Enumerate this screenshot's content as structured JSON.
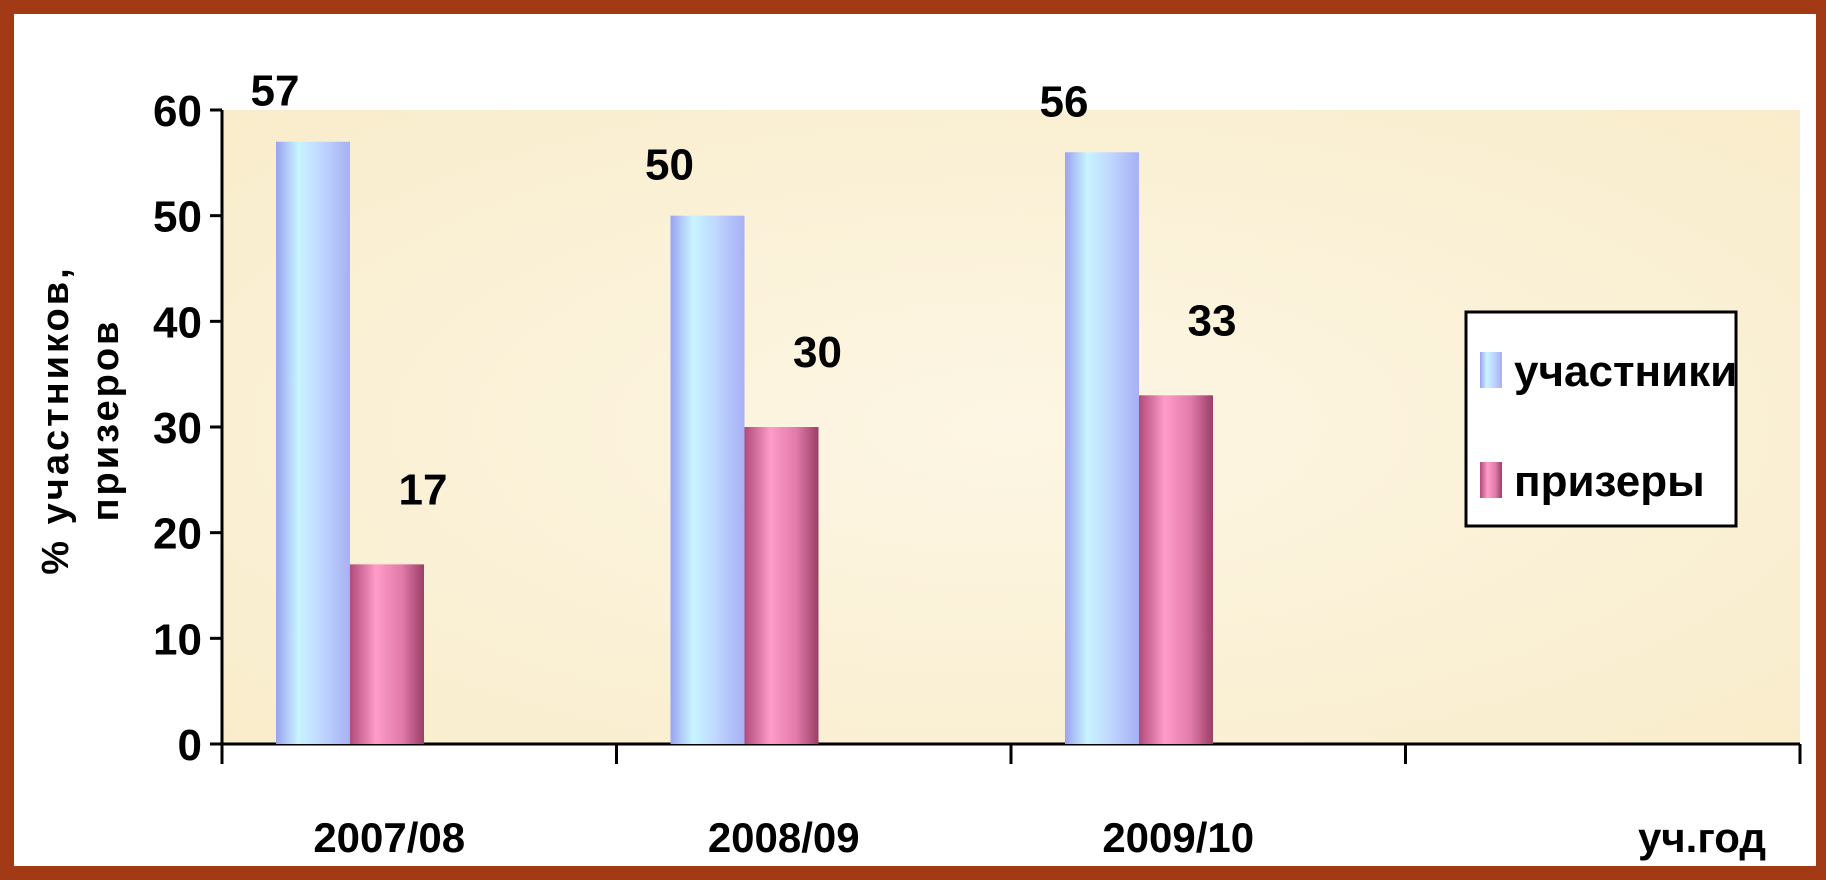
{
  "chart_data": {
    "type": "bar",
    "categories": [
      "2007/08",
      "2008/09",
      "2009/10",
      ""
    ],
    "series": [
      {
        "name": "участники",
        "values": [
          57,
          50,
          56,
          null
        ]
      },
      {
        "name": "призеры",
        "values": [
          17,
          30,
          33,
          null
        ]
      }
    ],
    "data_labels": {
      "участники": [
        "57",
        "50",
        "56",
        ""
      ],
      "призеры": [
        "17",
        "30",
        "33",
        ""
      ]
    },
    "title": "",
    "xlabel": "уч.год",
    "ylabel_line1": "%  участников,",
    "ylabel_line2": "призеров",
    "ylim": [
      0,
      60
    ],
    "yticks": [
      "0",
      "10",
      "20",
      "30",
      "40",
      "50",
      "60"
    ],
    "grid": false,
    "legend_position": "right",
    "colors": {
      "frame": "#a23a16",
      "plot_bg": "#fbf1d6",
      "series1_light": "#c8f4ff",
      "series1_mid": "#b4c8ff",
      "series1_edge": "#9aa2f0",
      "series2_light": "#ff9cc8",
      "series2_mid": "#d66a9a",
      "series2_edge": "#9a3f66"
    }
  }
}
